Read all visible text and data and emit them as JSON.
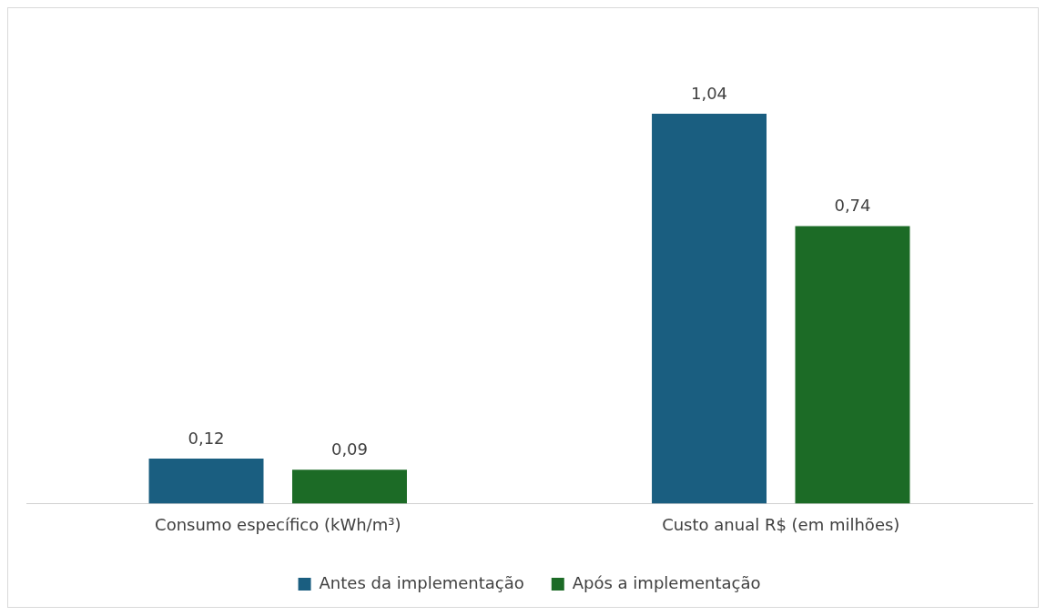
{
  "chart_data": {
    "type": "bar",
    "categories": [
      "Consumo específico (kWh/m³)",
      "Custo anual R$ (em milhões)"
    ],
    "series": [
      {
        "name": "Antes da implementação",
        "color": "#1a5e80",
        "values": [
          0.12,
          1.04
        ],
        "value_labels": [
          "0,12",
          "1,04"
        ]
      },
      {
        "name": "Após a implementação",
        "color": "#1c6b26",
        "values": [
          0.09,
          0.74
        ],
        "value_labels": [
          "0,09",
          "0,74"
        ]
      }
    ],
    "legend": "bottom",
    "grid": false
  }
}
